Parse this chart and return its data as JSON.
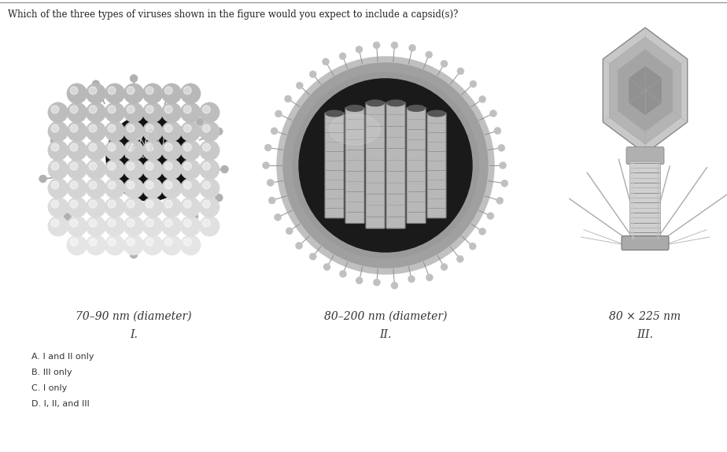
{
  "title": "Which of the three types of viruses shown in the figure would you expect to include a capsid(s)?",
  "title_fontsize": 8.5,
  "title_color": "#222222",
  "bg_color": "#ffffff",
  "virus1_label": "70–90 nm (diameter)",
  "virus2_label": "80–200 nm (diameter)",
  "virus3_label": "80 × 225 nm",
  "virus1_roman": "I.",
  "virus2_roman": "II.",
  "virus3_roman": "III.",
  "label_fontsize": 10,
  "roman_fontsize": 10,
  "options": [
    {
      "letter": "A",
      "text": "I and II only"
    },
    {
      "letter": "B",
      "text": "III only"
    },
    {
      "letter": "C",
      "text": "I only"
    },
    {
      "letter": "D",
      "text": "I, II, and III"
    }
  ],
  "option_fontsize": 8,
  "option_color": "#333333",
  "circle_color": "#666666"
}
